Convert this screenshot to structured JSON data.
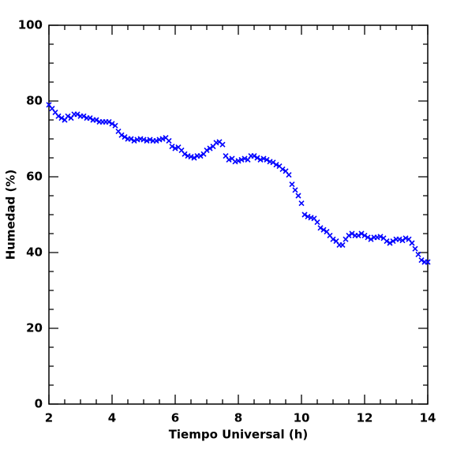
{
  "chart_data": {
    "type": "scatter",
    "xlabel": "Tiempo Universal (h)",
    "ylabel": "Humedad (%)",
    "xlim": [
      2,
      14
    ],
    "ylim": [
      0,
      100
    ],
    "xticks": [
      2,
      4,
      6,
      8,
      10,
      12,
      14
    ],
    "yticks": [
      0,
      20,
      40,
      60,
      80,
      100
    ],
    "xminorticks": [
      2.5,
      3,
      3.5,
      4.5,
      5,
      5.5,
      6.5,
      7,
      7.5,
      8.5,
      9,
      9.5,
      10.5,
      11,
      11.5,
      12.5,
      13,
      13.5
    ],
    "yminorticks": [
      5,
      10,
      15,
      25,
      30,
      35,
      45,
      50,
      55,
      65,
      70,
      75,
      85,
      90,
      95
    ],
    "color": "#0000ff",
    "x": [
      2.0,
      2.1,
      2.2,
      2.3,
      2.4,
      2.5,
      2.6,
      2.7,
      2.8,
      2.9,
      3.0,
      3.1,
      3.2,
      3.3,
      3.4,
      3.5,
      3.6,
      3.7,
      3.8,
      3.9,
      4.0,
      4.1,
      4.2,
      4.3,
      4.4,
      4.5,
      4.6,
      4.7,
      4.8,
      4.9,
      5.0,
      5.1,
      5.2,
      5.3,
      5.4,
      5.5,
      5.6,
      5.7,
      5.8,
      5.9,
      6.0,
      6.1,
      6.2,
      6.3,
      6.4,
      6.5,
      6.6,
      6.7,
      6.8,
      6.9,
      7.0,
      7.1,
      7.2,
      7.3,
      7.4,
      7.5,
      7.6,
      7.7,
      7.8,
      7.9,
      8.0,
      8.1,
      8.2,
      8.3,
      8.4,
      8.5,
      8.6,
      8.7,
      8.8,
      8.9,
      9.0,
      9.1,
      9.2,
      9.3,
      9.4,
      9.5,
      9.6,
      9.7,
      9.8,
      9.9,
      10.0,
      10.1,
      10.2,
      10.3,
      10.4,
      10.5,
      10.6,
      10.7,
      10.8,
      10.9,
      11.0,
      11.1,
      11.2,
      11.3,
      11.4,
      11.5,
      11.6,
      11.7,
      11.8,
      11.9,
      12.0,
      12.1,
      12.2,
      12.3,
      12.4,
      12.5,
      12.6,
      12.7,
      12.8,
      12.9,
      13.0,
      13.1,
      13.2,
      13.3,
      13.4,
      13.5,
      13.6,
      13.7,
      13.8,
      13.9,
      14.0
    ],
    "values": [
      79,
      78,
      77,
      76,
      75.5,
      75,
      76,
      75.5,
      76.5,
      76.5,
      76,
      76,
      75.5,
      75.5,
      75,
      75,
      74.5,
      74.5,
      74.5,
      74.5,
      74,
      73.5,
      72,
      71,
      70.5,
      70,
      70,
      69.5,
      69.8,
      70,
      69.8,
      69.5,
      69.8,
      69.5,
      69.5,
      69.8,
      70,
      70.3,
      69.5,
      68,
      67.5,
      67.8,
      67,
      66,
      65.5,
      65.3,
      65,
      65.5,
      65.5,
      66,
      67,
      67.5,
      68,
      69,
      69.2,
      68.5,
      65.5,
      64.5,
      64.8,
      64,
      64.2,
      64.5,
      64.8,
      64.5,
      65.5,
      65.5,
      65,
      64.5,
      64.8,
      64.5,
      64,
      63.8,
      63.2,
      62.8,
      62,
      61.5,
      60.5,
      58,
      56.5,
      55,
      53,
      50,
      49.5,
      49.2,
      49,
      48,
      46.5,
      46,
      45.5,
      44.5,
      43.5,
      43,
      42,
      42,
      43.5,
      44.5,
      45,
      44.5,
      44.5,
      45,
      44.5,
      44,
      43.5,
      44,
      44,
      44.2,
      43.8,
      43,
      42.5,
      43,
      43.5,
      43.5,
      43.2,
      43.8,
      43.5,
      42.5,
      41,
      39.5,
      38,
      37.5,
      37.5
    ]
  }
}
